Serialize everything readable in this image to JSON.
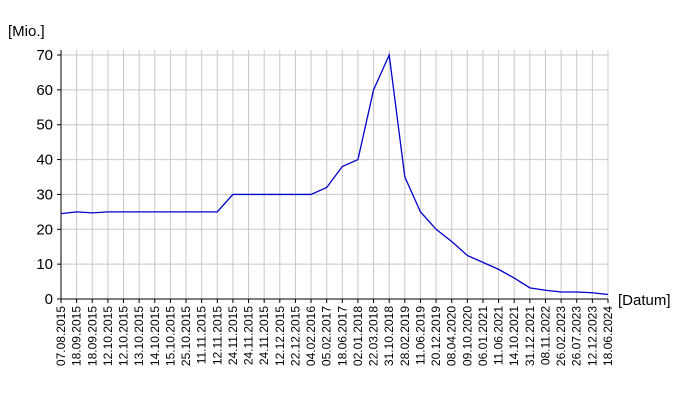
{
  "chart_data": {
    "type": "line",
    "y_label": "[Mio.]",
    "x_label": "[Datum]",
    "categories": [
      "07.08.2015",
      "18.09.2015",
      "18.09.2015",
      "12.10.2015",
      "12.10.2015",
      "13.10.2015",
      "14.10.2015",
      "15.10.2015",
      "25.10.2015",
      "11.11.2015",
      "12.11.2015",
      "24.11.2015",
      "24.11.2015",
      "24.11.2015",
      "12.12.2015",
      "22.12.2015",
      "04.02.2016",
      "05.02.2017",
      "18.06.2017",
      "02.01.2018",
      "22.03.2018",
      "31.10.2018",
      "28.02.2019",
      "11.06.2019",
      "20.12.2019",
      "08.04.2020",
      "09.10.2020",
      "06.01.2021",
      "11.06.2021",
      "14.10.2021",
      "31.12.2021",
      "08.11.2022",
      "26.02.2023",
      "26.07.2023",
      "12.12.2023",
      "18.06.2024"
    ],
    "values": [
      24.5,
      25,
      24.7,
      25,
      25,
      25,
      25,
      25,
      25,
      25,
      25,
      30,
      30,
      30,
      30,
      30,
      30,
      32,
      38,
      40,
      60,
      70,
      35,
      25,
      20,
      16.5,
      12.5,
      10.5,
      8.5,
      6,
      3.2,
      2.5,
      2,
      2,
      1.8,
      1.3
    ],
    "color": "#0000cc",
    "ylim": [
      0,
      70
    ],
    "yticks": [
      0,
      10,
      20,
      30,
      40,
      50,
      60,
      70
    ],
    "grid": true
  }
}
